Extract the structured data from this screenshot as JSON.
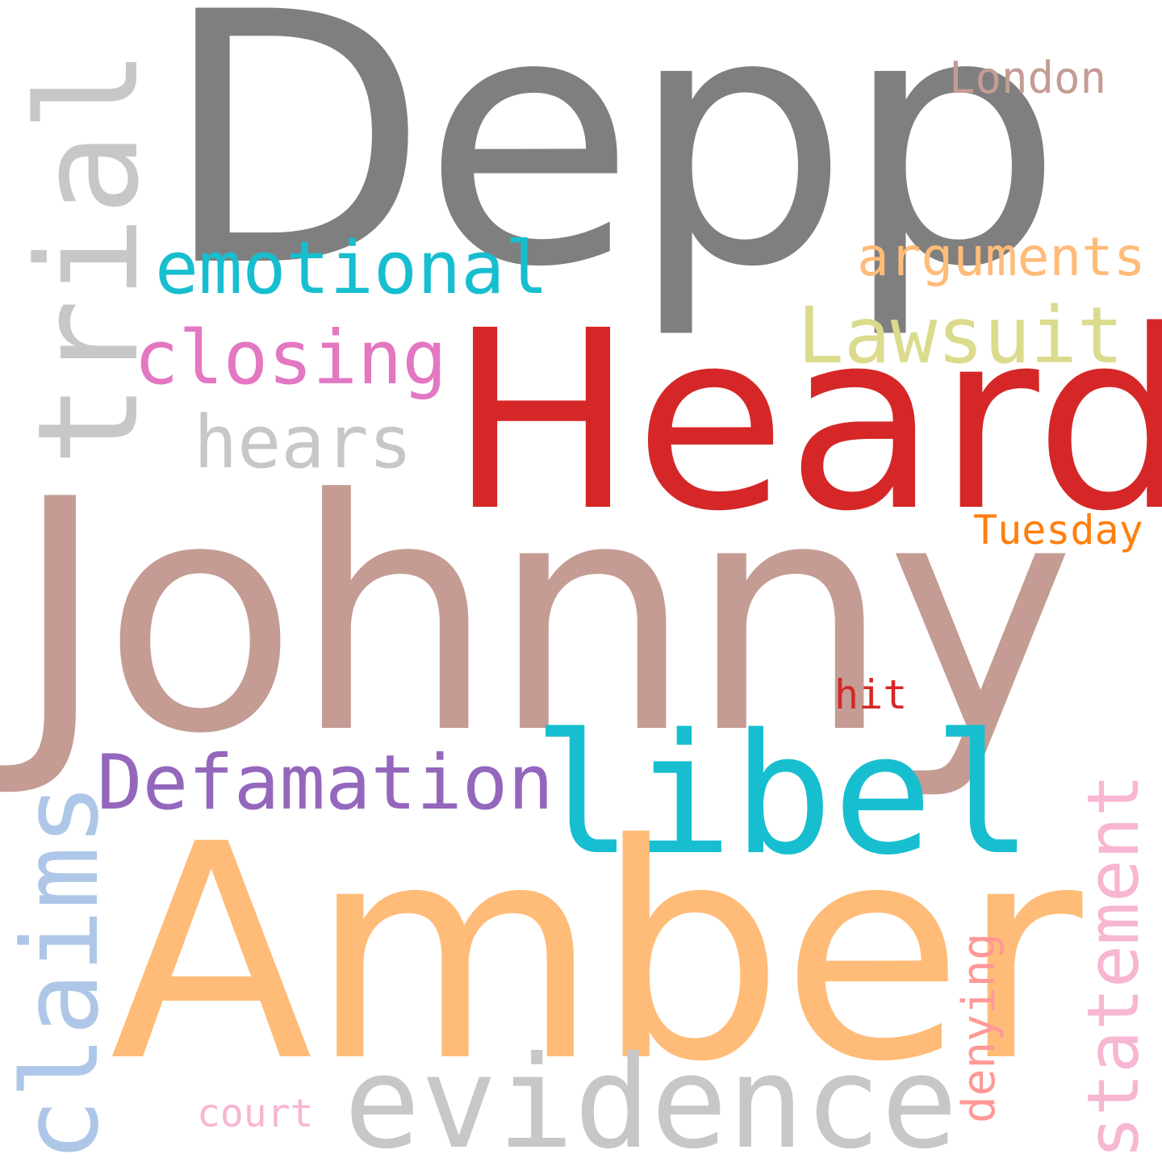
{
  "word_cloud": {
    "words": [
      {
        "text": "Depp",
        "color": "#7f7f7f"
      },
      {
        "text": "London",
        "color": "#c49c94"
      },
      {
        "text": "trial",
        "color": "#c7c7c7"
      },
      {
        "text": "emotional",
        "color": "#17becf"
      },
      {
        "text": "arguments",
        "color": "#ffbb78"
      },
      {
        "text": "closing",
        "color": "#e377c2"
      },
      {
        "text": "Lawsuit",
        "color": "#dbdb8d"
      },
      {
        "text": "Heard",
        "color": "#d62728"
      },
      {
        "text": "hears",
        "color": "#c7c7c7"
      },
      {
        "text": "Tuesday",
        "color": "#ff7f0e"
      },
      {
        "text": "Johnny",
        "color": "#c49c94"
      },
      {
        "text": "hit",
        "color": "#d62728"
      },
      {
        "text": "libel",
        "color": "#17becf"
      },
      {
        "text": "Defamation",
        "color": "#9467bd"
      },
      {
        "text": "claims",
        "color": "#aec7e8"
      },
      {
        "text": "statement",
        "color": "#f7b6d2"
      },
      {
        "text": "Amber",
        "color": "#ffbb78"
      },
      {
        "text": "denying",
        "color": "#ff9896"
      },
      {
        "text": "evidence",
        "color": "#c7c7c7"
      },
      {
        "text": "court",
        "color": "#f7b6d2"
      }
    ]
  }
}
